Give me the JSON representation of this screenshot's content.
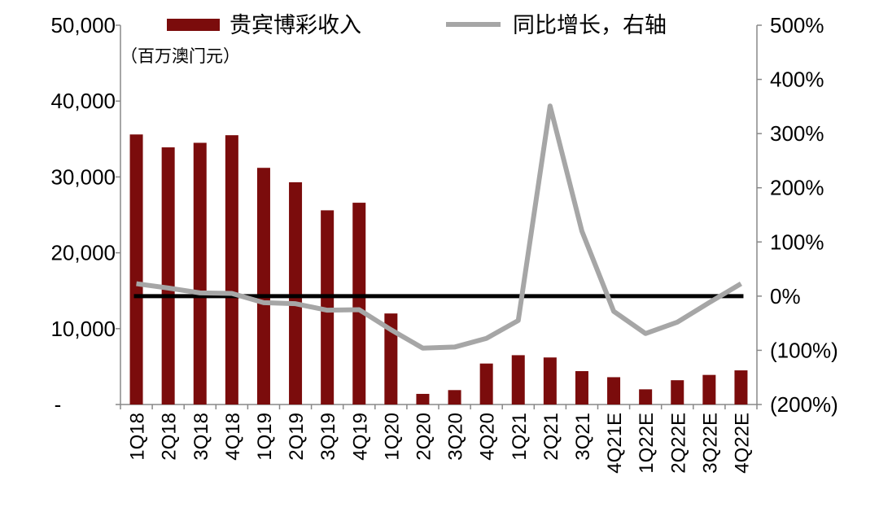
{
  "chart_data": {
    "type": "bar+line",
    "title": "",
    "unit_label": "（百万澳门元）",
    "categories": [
      "1Q18",
      "2Q18",
      "3Q18",
      "4Q18",
      "1Q19",
      "2Q19",
      "3Q19",
      "4Q19",
      "1Q20",
      "2Q20",
      "3Q20",
      "4Q20",
      "1Q21",
      "2Q21",
      "3Q21",
      "4Q21E",
      "1Q22E",
      "2Q22E",
      "3Q22E",
      "4Q22E"
    ],
    "series": [
      {
        "name": "贵宾博彩收入",
        "type": "bar",
        "axis": "left",
        "color": "#7B0C0C",
        "values": [
          35600,
          33900,
          34500,
          35500,
          31200,
          29300,
          25600,
          26600,
          12000,
          1400,
          1900,
          5400,
          6500,
          6200,
          4400,
          3600,
          2000,
          3200,
          3900,
          4500
        ]
      },
      {
        "name": "同比增长，右轴",
        "type": "line",
        "axis": "right",
        "color": "#A6A6A6",
        "values": [
          23,
          15,
          6,
          5,
          -12,
          -14,
          -26,
          -25,
          -62,
          -96,
          -94,
          -78,
          -45,
          351,
          120,
          -28,
          -69,
          -48,
          -12,
          23
        ]
      }
    ],
    "zero_line_color": "#000000",
    "left_axis": {
      "range": [
        0,
        50000
      ],
      "ticks": [
        0,
        10000,
        20000,
        30000,
        40000,
        50000
      ],
      "tick_labels": [
        "-",
        "10,000",
        "20,000",
        "30,000",
        "40,000",
        "50,000"
      ]
    },
    "right_axis": {
      "range": [
        -200,
        500
      ],
      "ticks": [
        -200,
        -100,
        0,
        100,
        200,
        300,
        400,
        500
      ],
      "tick_labels": [
        "(200%)",
        "(100%)",
        "0%",
        "100%",
        "200%",
        "300%",
        "400%",
        "500%"
      ]
    },
    "grid": false,
    "legend_placement": "top"
  }
}
